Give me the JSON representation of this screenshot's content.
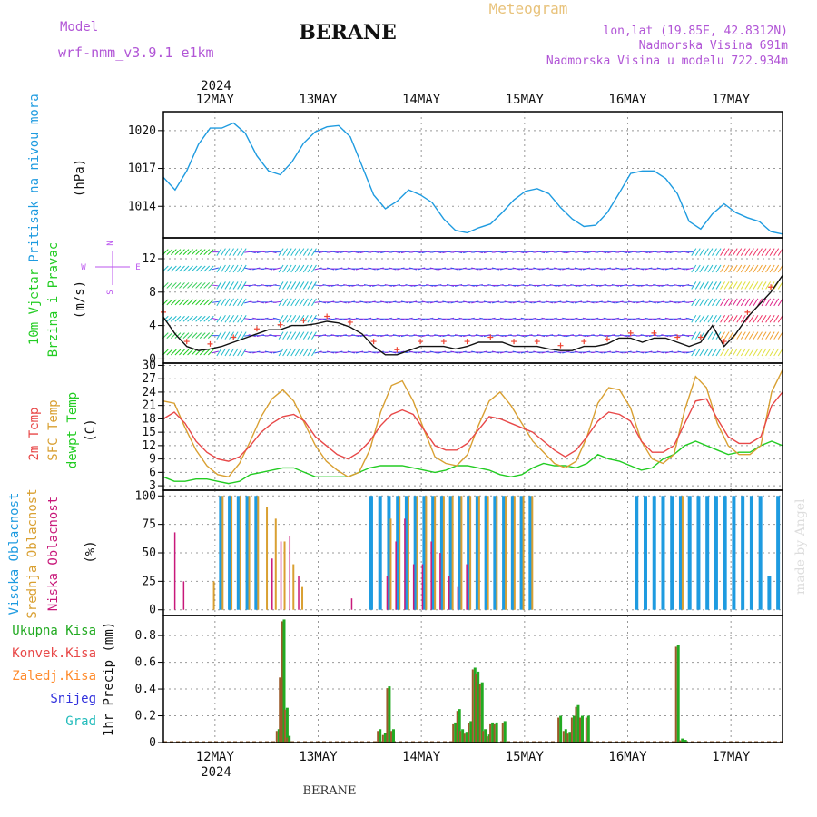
{
  "header": {
    "model_label": "Model",
    "model_name": "wrf-nmm_v3.9.1  e1km",
    "station": "BERANE",
    "meteogram": "Meteogram",
    "lonlat": "lon,lat (19.85E, 42.8312N)",
    "elevation": "Nadmorska Visina 691m",
    "model_elevation": "Nadmorska Visina u modelu 722.934m",
    "year": "2024",
    "footer_station": "BERANE",
    "watermark": "made by Angel"
  },
  "colors": {
    "pressure": "#1e9be0",
    "temp": "#e84848",
    "sfc_temp": "#d9a032",
    "dewpt": "#22cc22",
    "high_cloud": "#1e9be0",
    "mid_cloud": "#d9a032",
    "low_cloud": "#c8197a",
    "precip_total": "#22aa22",
    "precip_conv": "#e84848",
    "precip_freeze": "#ff8c2e",
    "snow": "#3333dd",
    "hail": "#22bbbb",
    "wind_label": "#22cc22",
    "compass": "#bb55ee"
  },
  "chart_data": [
    {
      "type": "line",
      "panel": "pressure",
      "ylabel_name": "Pritisak na nivou mora",
      "ylabel_unit": "(hPa)",
      "x_ticks": [
        "12MAY",
        "13MAY",
        "14MAY",
        "15MAY",
        "16MAY",
        "17MAY"
      ],
      "yticks": [
        "1014",
        "1017",
        "1020"
      ],
      "ylim": [
        1011.5,
        1021.5
      ],
      "grid": true,
      "series": [
        {
          "values": [
            1016.3,
            1015.3,
            1016.8,
            1018.9,
            1020.2,
            1020.2,
            1020.6,
            1019.8,
            1018.0,
            1016.8,
            1016.5,
            1017.5,
            1019.0,
            1019.9,
            1020.3,
            1020.4,
            1019.5,
            1017.2,
            1014.9,
            1013.8,
            1014.4,
            1015.3,
            1014.9,
            1014.3,
            1013.0,
            1012.1,
            1011.9,
            1012.3,
            1012.6,
            1013.5,
            1014.5,
            1015.2,
            1015.4,
            1015.0,
            1013.9,
            1013.0,
            1012.4,
            1012.5,
            1013.5,
            1015.0,
            1016.6,
            1016.8,
            1016.8,
            1016.2,
            1015.0,
            1012.8,
            1012.2,
            1013.4,
            1014.2,
            1013.5,
            1013.1,
            1012.8,
            1012.0,
            1011.8
          ]
        }
      ]
    },
    {
      "type": "line",
      "panel": "wind",
      "ylabel_name": "10m Vjetar",
      "ylabel_sub": "Brzina i Pravac",
      "ylabel_unit": "(m/s)",
      "compass": {
        "n": "N",
        "e": "E",
        "w": "W",
        "s": "S"
      },
      "yticks": [
        "0",
        "4",
        "8",
        "12"
      ],
      "ylim": [
        -0.5,
        14.5
      ],
      "grid": true,
      "series": [
        {
          "name": "speed",
          "values": [
            5.0,
            3.0,
            1.5,
            1.0,
            1.2,
            1.5,
            2.0,
            2.5,
            3.0,
            3.5,
            3.5,
            4.0,
            4.0,
            4.2,
            4.5,
            4.3,
            3.8,
            3.0,
            1.5,
            0.5,
            0.5,
            1.0,
            1.5,
            1.5,
            1.5,
            1.2,
            1.5,
            2.0,
            2.0,
            2.0,
            1.5,
            1.5,
            1.5,
            1.2,
            1.0,
            1.0,
            1.5,
            1.5,
            1.8,
            2.5,
            2.5,
            2.0,
            2.5,
            2.5,
            2.0,
            1.5,
            2.0,
            4.0,
            1.5,
            3.0,
            5.0,
            6.5,
            8.0,
            10.0
          ]
        }
      ]
    },
    {
      "type": "line",
      "panel": "temperature",
      "ylabel_names": [
        "2m Temp",
        "SFC Temp",
        "dewpt Temp"
      ],
      "ylabel_unit": "(C)",
      "yticks": [
        "3",
        "6",
        "9",
        "12",
        "15",
        "18",
        "21",
        "24",
        "27",
        "30"
      ],
      "ylim": [
        2,
        30.5
      ],
      "grid": true,
      "series": [
        {
          "name": "temp",
          "values": [
            18,
            19.5,
            17,
            13,
            10.5,
            9,
            8.5,
            9.5,
            12,
            15,
            17,
            18.5,
            19,
            17.5,
            14,
            12,
            10,
            9,
            10.5,
            13,
            16.5,
            19,
            20,
            19,
            15.5,
            12,
            11,
            11,
            12.5,
            15.5,
            18.5,
            18,
            17,
            16,
            15,
            13,
            11,
            9.5,
            11,
            14,
            17.5,
            19.5,
            19,
            17.5,
            13,
            10.5,
            10.5,
            12,
            17,
            22,
            22.5,
            18,
            14,
            12.5,
            12.5,
            14,
            21,
            24
          ]
        },
        {
          "name": "sfc",
          "values": [
            22,
            21.5,
            16,
            11,
            7.5,
            5.5,
            5,
            8,
            13,
            18.5,
            22.5,
            24.5,
            22,
            17,
            12,
            8.5,
            6.5,
            5,
            6,
            11,
            19.5,
            25.5,
            26.5,
            22,
            15.5,
            9.5,
            8,
            7.5,
            10,
            16.5,
            22,
            24,
            21,
            17,
            13,
            10.5,
            8,
            7,
            8.5,
            14,
            21.5,
            25,
            24.5,
            20.5,
            13,
            9,
            8,
            10,
            20,
            27.5,
            25,
            17,
            12,
            10,
            10,
            12,
            24,
            29
          ]
        },
        {
          "name": "dewpt",
          "values": [
            5,
            4,
            4,
            4.5,
            4.5,
            4,
            3.5,
            4,
            5.5,
            6,
            6.5,
            7,
            7,
            6,
            5,
            5,
            5,
            5,
            6,
            7,
            7.5,
            7.5,
            7.5,
            7,
            6.5,
            6,
            6.5,
            7.5,
            7.5,
            7,
            6.5,
            5.5,
            5,
            5.5,
            7,
            8,
            7.5,
            7.5,
            7,
            8,
            10,
            9,
            8.5,
            7.5,
            6.5,
            7,
            9,
            10,
            12,
            13,
            12,
            11,
            10,
            10.5,
            10.5,
            12,
            13,
            12
          ]
        }
      ]
    },
    {
      "type": "bar",
      "panel": "clouds",
      "ylabel_names": [
        "Visoka Oblacnost",
        "Srednja Oblacnost",
        "Niska Oblacnost"
      ],
      "ylabel_unit": "(%)",
      "yticks": [
        "0",
        "25",
        "50",
        "75",
        "100"
      ],
      "ylim": [
        -5,
        105
      ],
      "grid": true,
      "series": [
        {
          "name": "high",
          "values": [
            0,
            0,
            0,
            0,
            0,
            0,
            100,
            100,
            100,
            100,
            100,
            0,
            0,
            0,
            0,
            0,
            0,
            0,
            0,
            0,
            0,
            0,
            0,
            100,
            100,
            100,
            100,
            100,
            100,
            100,
            100,
            100,
            100,
            100,
            100,
            100,
            100,
            100,
            100,
            100,
            100,
            100,
            0,
            0,
            0,
            0,
            0,
            0,
            0,
            0,
            0,
            0,
            0,
            100,
            100,
            100,
            100,
            100,
            100,
            100,
            100,
            100,
            100,
            100,
            100,
            100,
            100,
            100,
            30,
            100
          ]
        },
        {
          "name": "mid",
          "values": [
            0,
            0,
            0,
            0,
            0,
            25,
            100,
            100,
            100,
            100,
            100,
            90,
            80,
            60,
            40,
            20,
            0,
            0,
            0,
            0,
            0,
            0,
            0,
            0,
            0,
            80,
            100,
            100,
            100,
            100,
            100,
            100,
            100,
            100,
            100,
            100,
            100,
            100,
            100,
            100,
            100,
            100,
            0,
            0,
            0,
            0,
            0,
            0,
            0,
            0,
            0,
            0,
            0,
            0,
            0,
            0,
            0,
            0,
            100,
            0,
            0,
            0,
            0,
            0,
            0,
            0,
            0,
            0,
            0,
            0
          ]
        },
        {
          "name": "low",
          "values": [
            0,
            68,
            25,
            0,
            0,
            0,
            0,
            0,
            0,
            0,
            0,
            0,
            45,
            60,
            65,
            30,
            0,
            0,
            0,
            0,
            0,
            10,
            0,
            0,
            0,
            30,
            60,
            80,
            40,
            40,
            60,
            50,
            30,
            20,
            40,
            0,
            0,
            0,
            0,
            0,
            0,
            0,
            0,
            0,
            0,
            0,
            0,
            0,
            0,
            0,
            0,
            0,
            0,
            0,
            0,
            0,
            0,
            0,
            0,
            0,
            0,
            0,
            0,
            0,
            0,
            0,
            0,
            0,
            0,
            0
          ]
        }
      ]
    },
    {
      "type": "bar",
      "panel": "precip",
      "ylabel_names": [
        "Ukupna Kisa",
        "Konvek.Kisa",
        "Zaledj.Kisa",
        "Snijeg",
        "Grad"
      ],
      "ylabel_unit": "1hr Precip (mm)",
      "yticks": [
        "0",
        "0.2",
        "0.4",
        "0.6",
        "0.8"
      ],
      "ylim": [
        0,
        0.95
      ],
      "grid": true,
      "bars": [
        {
          "day": 1.62,
          "value": 0.1
        },
        {
          "day": 1.65,
          "value": 0.5
        },
        {
          "day": 1.67,
          "value": 0.92
        },
        {
          "day": 1.7,
          "value": 0.26
        },
        {
          "day": 1.72,
          "value": 0.05
        },
        {
          "day": 2.6,
          "value": 0.1
        },
        {
          "day": 2.65,
          "value": 0.07
        },
        {
          "day": 2.69,
          "value": 0.42
        },
        {
          "day": 2.73,
          "value": 0.1
        },
        {
          "day": 3.33,
          "value": 0.15
        },
        {
          "day": 3.37,
          "value": 0.25
        },
        {
          "day": 3.4,
          "value": 0.1
        },
        {
          "day": 3.44,
          "value": 0.08
        },
        {
          "day": 3.48,
          "value": 0.16
        },
        {
          "day": 3.52,
          "value": 0.56
        },
        {
          "day": 3.55,
          "value": 0.53
        },
        {
          "day": 3.59,
          "value": 0.45
        },
        {
          "day": 3.62,
          "value": 0.1
        },
        {
          "day": 3.66,
          "value": 0.06
        },
        {
          "day": 3.69,
          "value": 0.15
        },
        {
          "day": 3.73,
          "value": 0.15
        },
        {
          "day": 3.81,
          "value": 0.16
        },
        {
          "day": 4.35,
          "value": 0.2
        },
        {
          "day": 4.4,
          "value": 0.1
        },
        {
          "day": 4.44,
          "value": 0.08
        },
        {
          "day": 4.48,
          "value": 0.2
        },
        {
          "day": 4.52,
          "value": 0.28
        },
        {
          "day": 4.56,
          "value": 0.2
        },
        {
          "day": 4.62,
          "value": 0.2
        },
        {
          "day": 5.49,
          "value": 0.73
        },
        {
          "day": 5.53,
          "value": 0.03
        },
        {
          "day": 5.56,
          "value": 0.02
        }
      ]
    }
  ]
}
